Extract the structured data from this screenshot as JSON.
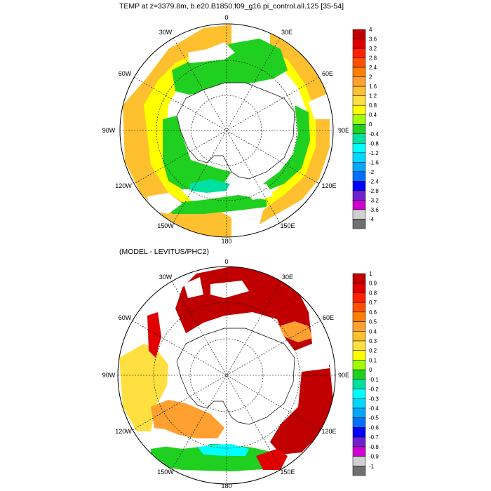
{
  "panels": [
    {
      "title": "TEMP at z=3379.8m, b.e20.B1850.f09_g16.pi_control.all.125 [35-54]",
      "lon_labels": [
        "0",
        "30E",
        "60E",
        "90E",
        "120E",
        "150E",
        "180",
        "150W",
        "120W",
        "90W",
        "60W",
        "30W"
      ],
      "colorbar_labels": [
        "4",
        "3.6",
        "3.2",
        "2.8",
        "2.4",
        "2",
        "1.6",
        "1.2",
        "0.8",
        "0.4",
        "0",
        "-0.4",
        "-0.8",
        "-1.2",
        "-1.6",
        "-2",
        "-2.4",
        "-2.8",
        "-3.2",
        "-3.6",
        "-4"
      ]
    },
    {
      "title": "(MODEL - LEVITUS/PHC2)",
      "lon_labels": [
        "0",
        "30E",
        "60E",
        "90E",
        "120E",
        "150E",
        "180",
        "150W",
        "120W",
        "90W",
        "60W",
        "30W"
      ],
      "colorbar_labels": [
        "1",
        "0.9",
        "0.8",
        "0.7",
        "0.6",
        "0.5",
        "0.4",
        "0.3",
        "0.2",
        "0.1",
        "0",
        "-0.1",
        "-0.2",
        "-0.3",
        "-0.4",
        "-0.5",
        "-0.6",
        "-0.7",
        "-0.8",
        "-0.9",
        "-1"
      ]
    }
  ],
  "colorbar_colors": [
    "#c00000",
    "#e00000",
    "#ff2000",
    "#ff5000",
    "#ff8000",
    "#ffa030",
    "#ffc030",
    "#ffe040",
    "#ffff00",
    "#a0ff00",
    "#20d020",
    "#00e0a0",
    "#00ffff",
    "#00d8ff",
    "#00a8ff",
    "#0070ff",
    "#0000ff",
    "#7020d0",
    "#d000d0",
    "#d0d0d0",
    "#707070"
  ]
}
